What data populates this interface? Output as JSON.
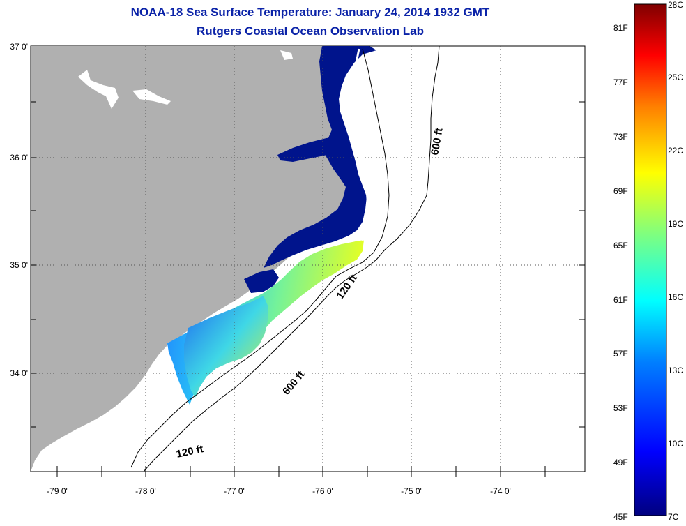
{
  "header": {
    "title": "NOAA-18 Sea Surface Temperature:  January 24, 2014 1932 GMT",
    "subtitle": "Rutgers Coastal Ocean Observation Lab"
  },
  "map": {
    "latitude_labels": [
      "37 0'",
      "36 0'",
      "35 0'",
      "34 0'"
    ],
    "longitude_labels": [
      "-79 0'",
      "-78 0'",
      "-77 0'",
      "-76 0'",
      "-75 0'",
      "-74 0'"
    ],
    "contour_labels": [
      "600 ft",
      "120 ft",
      "600 ft",
      "120 ft"
    ],
    "colors": {
      "land": "#b0b0b0",
      "water_cold": "#00148c",
      "background": "#ffffff"
    }
  },
  "colorbar": {
    "fahrenheit_labels": [
      "81F",
      "77F",
      "73F",
      "69F",
      "65F",
      "61F",
      "57F",
      "53F",
      "49F",
      "45F"
    ],
    "celsius_labels": [
      "28C",
      "25C",
      "22C",
      "19C",
      "16C",
      "13C",
      "10C",
      "7C"
    ],
    "colors": [
      "#00007f",
      "#0000ff",
      "#007fff",
      "#00ffff",
      "#7fff7f",
      "#ffff00",
      "#ff7f00",
      "#ff0000",
      "#7f0000"
    ]
  }
}
